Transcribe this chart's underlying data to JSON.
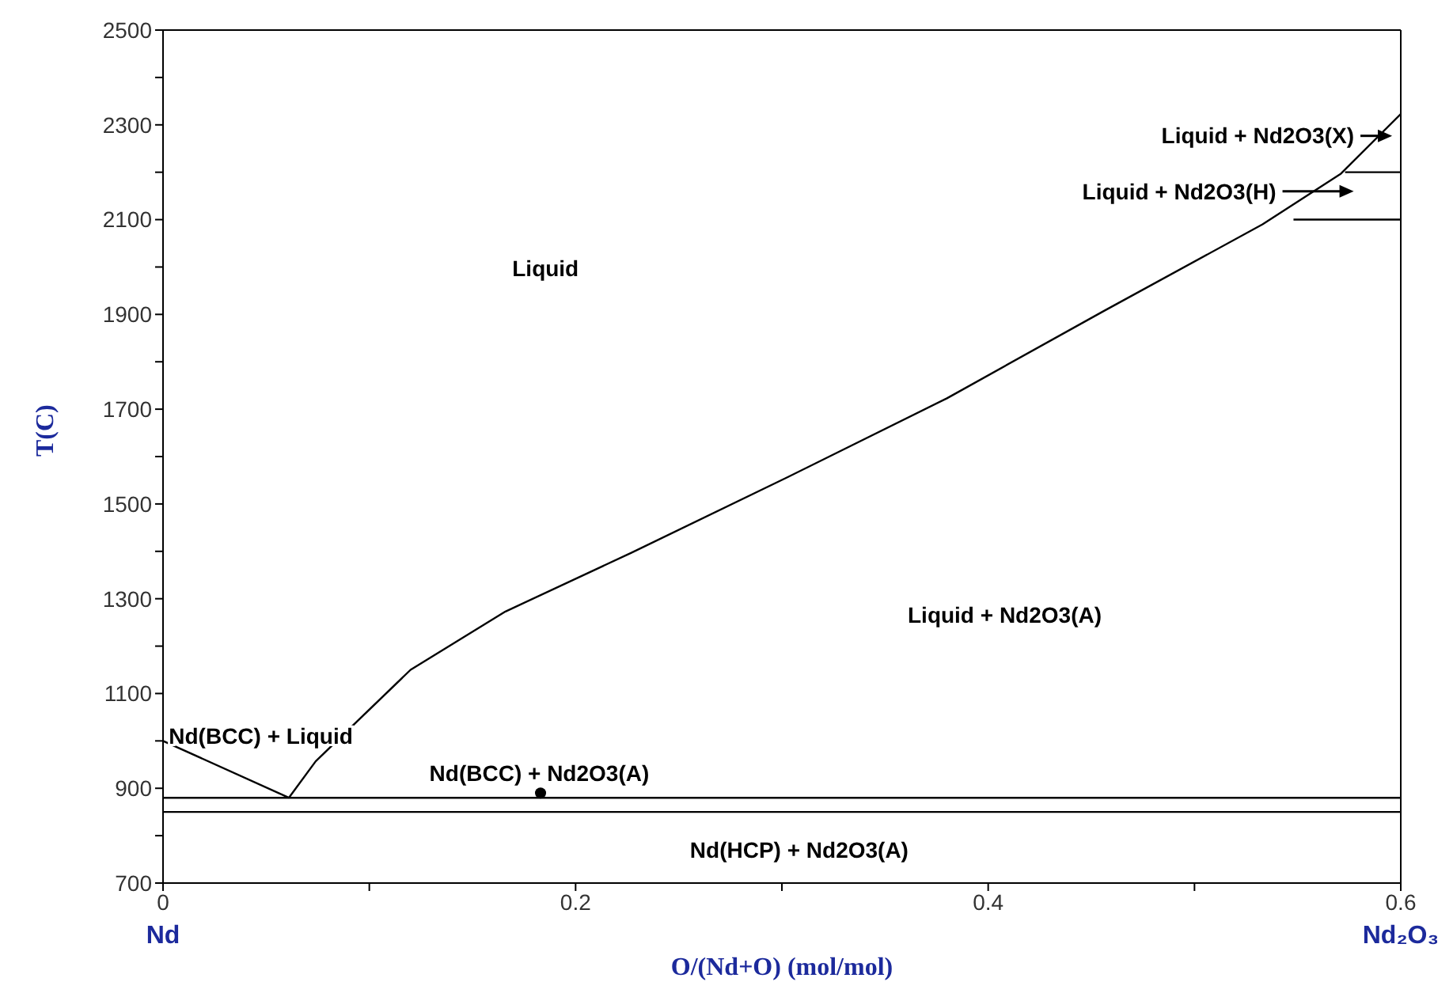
{
  "chart_data": {
    "type": "line",
    "xlabel": "O/(Nd+O) (mol/mol)",
    "ylabel": "T(C)",
    "xlim": [
      0,
      0.6
    ],
    "ylim": [
      700,
      2500
    ],
    "xticks": [
      0,
      {
        "value": 0.1,
        "label": null
      },
      0.2,
      {
        "value": 0.3,
        "label": null
      },
      0.4,
      {
        "value": 0.5,
        "label": null
      },
      0.6
    ],
    "yticks": [
      700,
      {
        "value": 800,
        "label": null
      },
      900,
      {
        "value": 1000,
        "label": null
      },
      1100,
      {
        "value": 1200,
        "label": null
      },
      1300,
      {
        "value": 1400,
        "label": null
      },
      1500,
      {
        "value": 1600,
        "label": null
      },
      1700,
      {
        "value": 1800,
        "label": null
      },
      1900,
      {
        "value": 2000,
        "label": null
      },
      2100,
      {
        "value": 2200,
        "label": null
      },
      2300,
      {
        "value": 2400,
        "label": null
      },
      2500
    ],
    "grid": false,
    "series": [
      {
        "color": "#000000",
        "x": [
          0,
          0.061
        ],
        "values": [
          1000,
          880
        ]
      },
      {
        "color": "#000000",
        "x": [
          0.061,
          0.074,
          0.12,
          0.166,
          0.227,
          0.303,
          0.38,
          0.456,
          0.533,
          0.571,
          0.6
        ],
        "values": [
          880,
          957,
          1150,
          1273,
          1397,
          1557,
          1723,
          1907,
          2090,
          2197,
          2323
        ]
      },
      {
        "color": "#000000",
        "x": [
          0,
          0.6
        ],
        "values": [
          880,
          880
        ]
      },
      {
        "color": "#000000",
        "x": [
          0,
          0.6
        ],
        "values": [
          850,
          850
        ]
      },
      {
        "color": "#000000",
        "x": [
          0.548,
          0.6
        ],
        "values": [
          2100,
          2100
        ]
      },
      {
        "color": "#000000",
        "x": [
          0.573,
          0.6
        ],
        "values": [
          2200,
          2200
        ]
      },
      {
        "type": "scatter",
        "color": "#000000",
        "x": [
          0.183
        ],
        "values": [
          890
        ]
      }
    ],
    "annotations": [
      "Liquid",
      "Liquid + Nd2O3(A)",
      "Nd(BCC) + Liquid",
      "Nd(BCC) + Nd2O3(A)",
      "Nd(HCP) + Nd2O3(A)",
      "Liquid + Nd2O3(X)",
      "Liquid + Nd2O3(H)",
      "Nd",
      "Nd₂O₃"
    ]
  }
}
